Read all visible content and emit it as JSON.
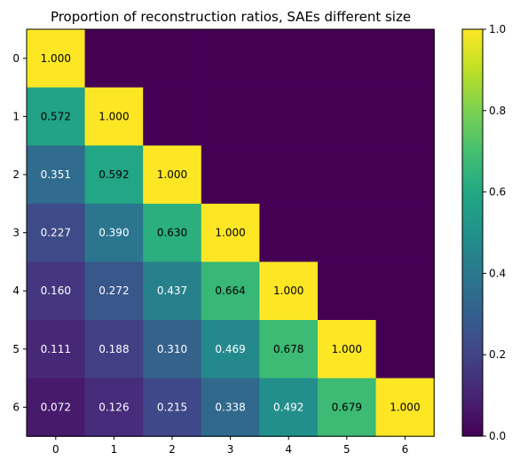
{
  "chart_data": {
    "type": "heatmap",
    "title": "Proportion of reconstruction ratios, SAEs different size",
    "xlabel": "",
    "ylabel": "",
    "x_categories": [
      "0",
      "1",
      "2",
      "3",
      "4",
      "5",
      "6"
    ],
    "y_categories": [
      "0",
      "1",
      "2",
      "3",
      "4",
      "5",
      "6"
    ],
    "matrix": [
      [
        1.0,
        0,
        0,
        0,
        0,
        0,
        0
      ],
      [
        0.572,
        1.0,
        0,
        0,
        0,
        0,
        0
      ],
      [
        0.351,
        0.592,
        1.0,
        0,
        0,
        0,
        0
      ],
      [
        0.227,
        0.39,
        0.63,
        1.0,
        0,
        0,
        0
      ],
      [
        0.16,
        0.272,
        0.437,
        0.664,
        1.0,
        0,
        0
      ],
      [
        0.111,
        0.188,
        0.31,
        0.469,
        0.678,
        1.0,
        0
      ],
      [
        0.072,
        0.126,
        0.215,
        0.338,
        0.492,
        0.679,
        1.0
      ]
    ],
    "cell_labels": [
      [
        "1.000",
        "",
        "",
        "",
        "",
        "",
        ""
      ],
      [
        "0.572",
        "1.000",
        "",
        "",
        "",
        "",
        ""
      ],
      [
        "0.351",
        "0.592",
        "1.000",
        "",
        "",
        "",
        ""
      ],
      [
        "0.227",
        "0.390",
        "0.630",
        "1.000",
        "",
        "",
        ""
      ],
      [
        "0.160",
        "0.272",
        "0.437",
        "0.664",
        "1.000",
        "",
        ""
      ],
      [
        "0.111",
        "0.188",
        "0.310",
        "0.469",
        "0.678",
        "1.000",
        ""
      ],
      [
        "0.072",
        "0.126",
        "0.215",
        "0.338",
        "0.492",
        "0.679",
        "1.000"
      ]
    ],
    "colormap": "viridis",
    "vmin": 0.0,
    "vmax": 1.0,
    "colorbar_ticks": [
      "0.0",
      "0.2",
      "0.4",
      "0.6",
      "0.8",
      "1.0"
    ],
    "colorbar_tick_values": [
      0.0,
      0.2,
      0.4,
      0.6,
      0.8,
      1.0
    ],
    "grid": false
  }
}
